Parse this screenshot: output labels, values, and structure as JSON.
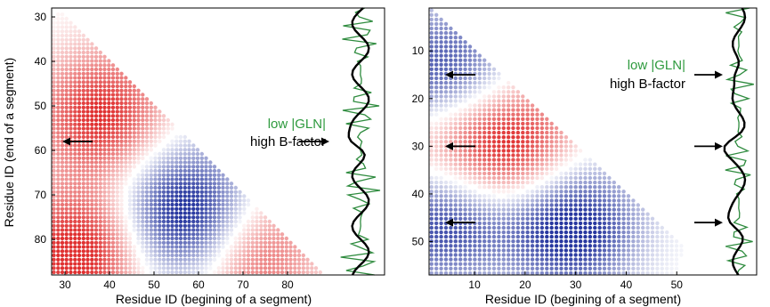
{
  "chart_data": [
    {
      "type": "heatmap",
      "xlabel": "Residue ID (begining of a segment)",
      "ylabel": "Residue ID (end of a segment)",
      "xlim": [
        27,
        89
      ],
      "ylim": [
        28,
        88
      ],
      "xticks": [
        "30",
        "40",
        "50",
        "60",
        "70",
        "80"
      ],
      "yticks": [
        "30",
        "40",
        "50",
        "60",
        "70",
        "80"
      ],
      "colormap": {
        "positive": "#e03030",
        "negative": "#2838a0",
        "zero": "#ffffff"
      },
      "blobs": [
        {
          "x_center": 38,
          "y_center": 52,
          "sign": "positive",
          "strength": 0.85
        },
        {
          "x_center": 57,
          "y_center": 74,
          "sign": "negative",
          "strength": 1.0
        },
        {
          "x_center": 33,
          "y_center": 83,
          "sign": "positive",
          "strength": 0.95
        },
        {
          "x_center": 73,
          "y_center": 84,
          "sign": "positive",
          "strength": 0.6
        }
      ],
      "annotations": {
        "low_gln": "low |GLN|",
        "high_b": "high B-factor"
      },
      "arrow_rows": [
        58
      ]
    },
    {
      "type": "heatmap",
      "xlabel": "Residue ID (begining of a segment)",
      "ylabel": "",
      "xlim": [
        1,
        57
      ],
      "ylim": [
        1,
        57
      ],
      "xticks": [
        "10",
        "20",
        "30",
        "40",
        "50"
      ],
      "yticks": [
        "10",
        "20",
        "30",
        "40",
        "50"
      ],
      "colormap": {
        "positive": "#e03030",
        "negative": "#2838a0",
        "zero": "#ffffff"
      },
      "blobs": [
        {
          "x_center": 17,
          "y_center": 30,
          "sign": "positive",
          "strength": 0.9
        },
        {
          "x_center": 29,
          "y_center": 47,
          "sign": "negative",
          "strength": 1.0
        },
        {
          "x_center": 4,
          "y_center": 14,
          "sign": "negative",
          "strength": 0.75
        },
        {
          "x_center": 4,
          "y_center": 46,
          "sign": "negative",
          "strength": 0.8
        },
        {
          "x_center": 3,
          "y_center": 30,
          "sign": "positive",
          "strength": 0.3
        }
      ],
      "annotations": {
        "low_gln": "low |GLN|",
        "high_b": "high B-factor"
      },
      "arrow_rows": [
        15,
        30,
        46
      ]
    }
  ]
}
